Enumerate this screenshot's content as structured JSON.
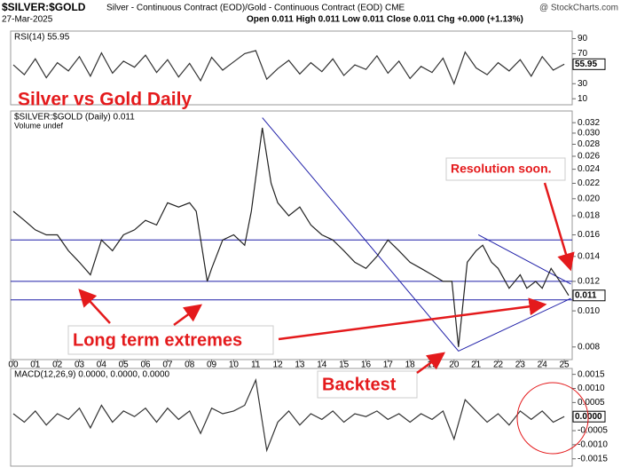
{
  "header": {
    "symbol": "$SILVER:$GOLD",
    "description": "Silver - Continuous Contract (EOD)/Gold - Continuous Contract (EOD) CME",
    "date": "27-Mar-2025",
    "ohlc": "Open 0.011 High 0.011 Low 0.011 Close 0.011 Chg +0.000 (+1.13%)",
    "source": "@ StockCharts.com"
  },
  "annotations": {
    "title": "Silver vs Gold  Daily",
    "resolution": "Resolution soon.",
    "extremes": "Long term extremes",
    "backtest": "Backtest"
  },
  "chart_data": [
    {
      "type": "line",
      "legend": "RSI(14) 55.95",
      "color": "#333333",
      "last_value": 55.95,
      "xlim": [
        1999.88,
        2025.36
      ],
      "ylim": [
        2,
        100
      ],
      "yticks": [
        10,
        30,
        70,
        90
      ],
      "x": [
        2000,
        2000.5,
        2001,
        2001.5,
        2002,
        2002.5,
        2003,
        2003.5,
        2004,
        2004.5,
        2005,
        2005.5,
        2006,
        2006.5,
        2007,
        2007.5,
        2008,
        2008.5,
        2009,
        2009.5,
        2010,
        2010.5,
        2011,
        2011.5,
        2012,
        2012.5,
        2013,
        2013.5,
        2014,
        2014.5,
        2015,
        2015.5,
        2016,
        2016.5,
        2017,
        2017.5,
        2018,
        2018.5,
        2019,
        2019.5,
        2020,
        2020.5,
        2021,
        2021.5,
        2022,
        2022.5,
        2023,
        2023.5,
        2024,
        2024.5,
        2025
      ],
      "values": [
        55,
        42,
        63,
        38,
        58,
        47,
        66,
        40,
        71,
        44,
        60,
        52,
        68,
        45,
        62,
        39,
        57,
        34,
        65,
        48,
        59,
        70,
        74,
        36,
        50,
        61,
        43,
        58,
        46,
        63,
        41,
        55,
        49,
        67,
        44,
        60,
        37,
        53,
        45,
        64,
        30,
        72,
        51,
        42,
        58,
        47,
        62,
        40,
        66,
        48,
        56
      ]
    },
    {
      "type": "line",
      "legend": "$SILVER:$GOLD (Daily) 0.011",
      "sublegend": "Volume undef",
      "color": "#222222",
      "last_value": 0.011,
      "log_scale": true,
      "xlim": [
        1999.88,
        2025.36
      ],
      "ylim": [
        0.0074,
        0.0344
      ],
      "yticks": [
        0.008,
        {
          "value": 0.01,
          "label": "0.010"
        },
        0.012,
        0.014,
        0.016,
        0.018,
        {
          "value": 0.02,
          "label": "0.020"
        },
        0.022,
        0.024,
        0.026,
        0.028,
        {
          "value": 0.03,
          "label": "0.030"
        },
        0.032
      ],
      "xticks": [
        {
          "value": 2000,
          "label": "00"
        },
        {
          "value": 2001,
          "label": "01"
        },
        {
          "value": 2002,
          "label": "02"
        },
        {
          "value": 2003,
          "label": "03"
        },
        {
          "value": 2004,
          "label": "04"
        },
        {
          "value": 2005,
          "label": "05"
        },
        {
          "value": 2006,
          "label": "06"
        },
        {
          "value": 2007,
          "label": "07"
        },
        {
          "value": 2008,
          "label": "08"
        },
        {
          "value": 2009,
          "label": "09"
        },
        {
          "value": 2010,
          "label": "10"
        },
        {
          "value": 2011,
          "label": "11"
        },
        {
          "value": 2012,
          "label": "12"
        },
        {
          "value": 2013,
          "label": "13"
        },
        {
          "value": 2014,
          "label": "14"
        },
        {
          "value": 2015,
          "label": "15"
        },
        {
          "value": 2016,
          "label": "16"
        },
        {
          "value": 2017,
          "label": "17"
        },
        {
          "value": 2018,
          "label": "18"
        },
        {
          "value": 2019,
          "label": "19"
        },
        {
          "value": 2020,
          "label": "20"
        },
        {
          "value": 2021,
          "label": "21"
        },
        {
          "value": 2022,
          "label": "22"
        },
        {
          "value": 2023,
          "label": "23"
        },
        {
          "value": 2024,
          "label": "24"
        },
        {
          "value": 2025,
          "label": "25"
        }
      ],
      "hlines": [
        0.0155,
        0.012,
        0.0107
      ],
      "hline_color": "#1f1fa8",
      "trendlines": [
        {
          "x": [
            2011.3,
            2020.2,
            2025.3
          ],
          "y": [
            0.033,
            0.0078,
            0.0108
          ]
        },
        {
          "x": [
            2021.1,
            2025.3
          ],
          "y": [
            0.016,
            0.0118
          ]
        }
      ],
      "x": [
        2000,
        2000.5,
        2001,
        2001.5,
        2002,
        2002.5,
        2003,
        2003.5,
        2004,
        2004.5,
        2005,
        2005.5,
        2006,
        2006.5,
        2007,
        2007.5,
        2008,
        2008.3,
        2008.8,
        2009,
        2009.5,
        2010,
        2010.5,
        2010.8,
        2011.3,
        2011.7,
        2012,
        2012.5,
        2013,
        2013.5,
        2014,
        2014.5,
        2015,
        2015.5,
        2016,
        2016.5,
        2017,
        2017.5,
        2018,
        2018.5,
        2019,
        2019.5,
        2019.9,
        2020.2,
        2020.6,
        2021,
        2021.3,
        2021.7,
        2022,
        2022.5,
        2023,
        2023.3,
        2023.7,
        2024,
        2024.4,
        2024.8,
        2025.2
      ],
      "values": [
        0.0185,
        0.0175,
        0.0165,
        0.016,
        0.016,
        0.0145,
        0.0135,
        0.0125,
        0.0155,
        0.0145,
        0.016,
        0.0165,
        0.0175,
        0.017,
        0.0195,
        0.019,
        0.0195,
        0.0185,
        0.012,
        0.013,
        0.0155,
        0.016,
        0.015,
        0.0185,
        0.031,
        0.022,
        0.0195,
        0.018,
        0.019,
        0.017,
        0.016,
        0.0155,
        0.0145,
        0.0135,
        0.013,
        0.014,
        0.0155,
        0.0145,
        0.0135,
        0.013,
        0.0125,
        0.012,
        0.012,
        0.008,
        0.0135,
        0.0145,
        0.015,
        0.0135,
        0.013,
        0.0115,
        0.0125,
        0.0115,
        0.012,
        0.0115,
        0.013,
        0.012,
        0.011
      ]
    },
    {
      "type": "line",
      "legend": "MACD(12,26,9) 0.0000, 0.0000, 0.0000",
      "color": "#333333",
      "last_value": {
        "value": 0,
        "label": "0.0000"
      },
      "xlim": [
        1999.88,
        2025.36
      ],
      "ylim": [
        -0.00176,
        0.00171
      ],
      "yticks": [
        0.0015,
        {
          "value": 0.001,
          "label": "0.0010"
        },
        0.0005,
        {
          "value": 0,
          "label": "0.0000"
        },
        -0.0005,
        {
          "value": -0.001,
          "label": "-0.0010"
        },
        -0.0015
      ],
      "x": [
        2000,
        2000.5,
        2001,
        2001.5,
        2002,
        2002.5,
        2003,
        2003.5,
        2004,
        2004.5,
        2005,
        2005.5,
        2006,
        2006.5,
        2007,
        2007.5,
        2008,
        2008.5,
        2009,
        2009.5,
        2010,
        2010.5,
        2011,
        2011.5,
        2012,
        2012.5,
        2013,
        2013.5,
        2014,
        2014.5,
        2015,
        2015.5,
        2016,
        2016.5,
        2017,
        2017.5,
        2018,
        2018.5,
        2019,
        2019.5,
        2020,
        2020.5,
        2021,
        2021.5,
        2022,
        2022.5,
        2023,
        2023.5,
        2024,
        2024.5,
        2025
      ],
      "values": [
        0.0001,
        -0.0002,
        0.0002,
        -0.0003,
        0.0001,
        -0.0001,
        0.0003,
        -0.0004,
        0.0004,
        -0.0002,
        0.0002,
        0,
        0.0003,
        -0.0002,
        0.0003,
        -0.0001,
        0.0002,
        -0.0006,
        0.0003,
        0.0001,
        0.0002,
        0.0004,
        0.0013,
        -0.0012,
        -0.0002,
        0.0002,
        -0.0003,
        0.0001,
        -0.0001,
        0.0002,
        -0.0002,
        0.0001,
        0,
        0.0002,
        -0.0001,
        0.0001,
        -0.0002,
        0.0001,
        -0.0001,
        0.0002,
        -0.0008,
        0.0006,
        0.0002,
        -0.0002,
        0.0001,
        -0.0003,
        0.0002,
        -0.0001,
        0.0002,
        -0.0002,
        0
      ]
    }
  ]
}
